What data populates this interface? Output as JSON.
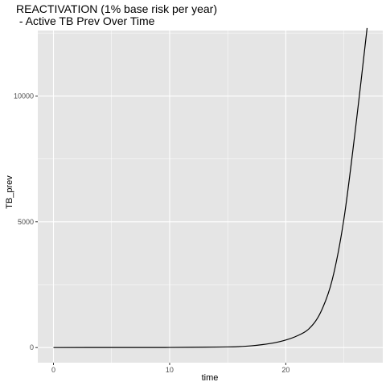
{
  "chart_data": {
    "type": "line",
    "title_lines": [
      "REACTIVATION (1% base risk per year)",
      " - Active TB Prev Over Time"
    ],
    "xlabel": "time",
    "ylabel": "TB_prev",
    "xlim": [
      -1.35,
      28.35
    ],
    "ylim": [
      -600,
      12600
    ],
    "x_ticks": [
      0,
      10,
      20
    ],
    "x_tick_labels": [
      "0",
      "10",
      "20"
    ],
    "y_ticks": [
      0,
      5000,
      10000
    ],
    "y_tick_labels": [
      "0",
      "5000",
      "10000"
    ],
    "grid": true,
    "background": "#e5e5e5",
    "grid_color": "#ffffff",
    "line_color": "#000000",
    "series": [
      {
        "x": [
          0,
          5,
          10,
          15,
          16,
          17,
          18,
          19,
          20,
          21,
          22,
          23,
          24,
          25,
          26,
          27
        ],
        "y": [
          1,
          3,
          5,
          25,
          40,
          70,
          120,
          190,
          300,
          470,
          750,
          1400,
          2700,
          5100,
          8700,
          12700
        ]
      }
    ]
  }
}
